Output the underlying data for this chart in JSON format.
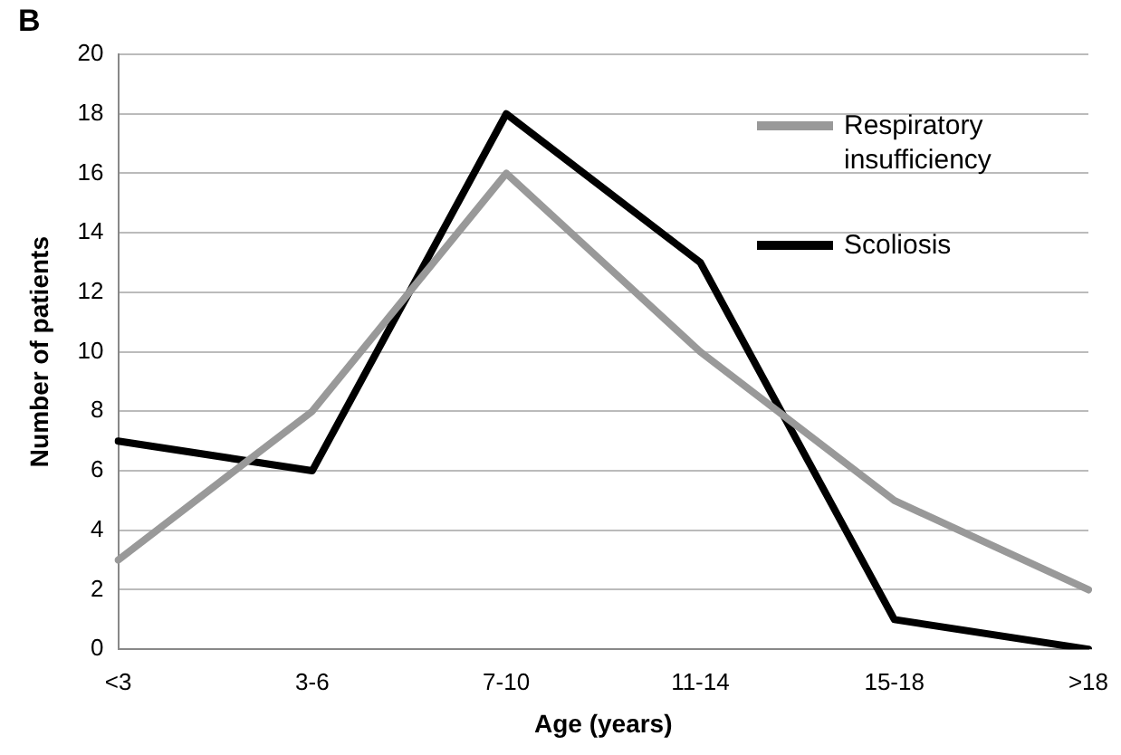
{
  "chart_data": {
    "type": "line",
    "title": "B",
    "xlabel": "Age (years)",
    "ylabel": "Number of patients",
    "categories": [
      "<3",
      "3-6",
      "7-10",
      "11-14",
      "15-18",
      ">18"
    ],
    "series": [
      {
        "name": "Respiratory insufficiency",
        "color": "#999999",
        "values": [
          3,
          8,
          16,
          10,
          5,
          2
        ]
      },
      {
        "name": "Scoliosis",
        "color": "#000000",
        "values": [
          7,
          6,
          18,
          13,
          1,
          0
        ]
      }
    ],
    "ylim": [
      0,
      20
    ],
    "yticks": [
      0,
      2,
      4,
      6,
      8,
      10,
      12,
      14,
      16,
      18,
      20
    ],
    "grid": "y",
    "legend": "top right",
    "marker": "none",
    "line_style": "solid"
  }
}
